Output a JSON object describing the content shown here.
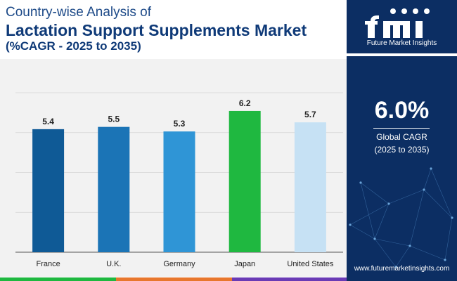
{
  "header": {
    "line1": "Country-wise Analysis of",
    "line2": "Lactation Support Supplements Market",
    "line3": "(%CAGR - 2025 to 2035)"
  },
  "sidebar": {
    "brand": "Future Market Insights",
    "cagr_value": "6.0%",
    "cagr_label": "Global CAGR",
    "cagr_period": "(2025 to 2035)",
    "url": "www.futuremarketinsights.com"
  },
  "chart_data": {
    "type": "bar",
    "categories": [
      "France",
      "U.K.",
      "Germany",
      "Japan",
      "United States"
    ],
    "values": [
      5.4,
      5.5,
      5.3,
      6.2,
      5.7
    ],
    "colors": [
      "#0f5a96",
      "#1b74b6",
      "#2f95d6",
      "#1fb840",
      "#c6e1f4"
    ],
    "ylim": [
      0,
      7
    ],
    "grid": true,
    "title": "",
    "xlabel": "",
    "ylabel": ""
  },
  "colors": {
    "brand_navy": "#0c2e63",
    "title_blue": "#0f3a78",
    "footer": [
      "#1fb840",
      "#e8772e",
      "#6a3bb5"
    ]
  },
  "icons": [
    "fmi-logo-icon",
    "network-graphic-icon"
  ]
}
